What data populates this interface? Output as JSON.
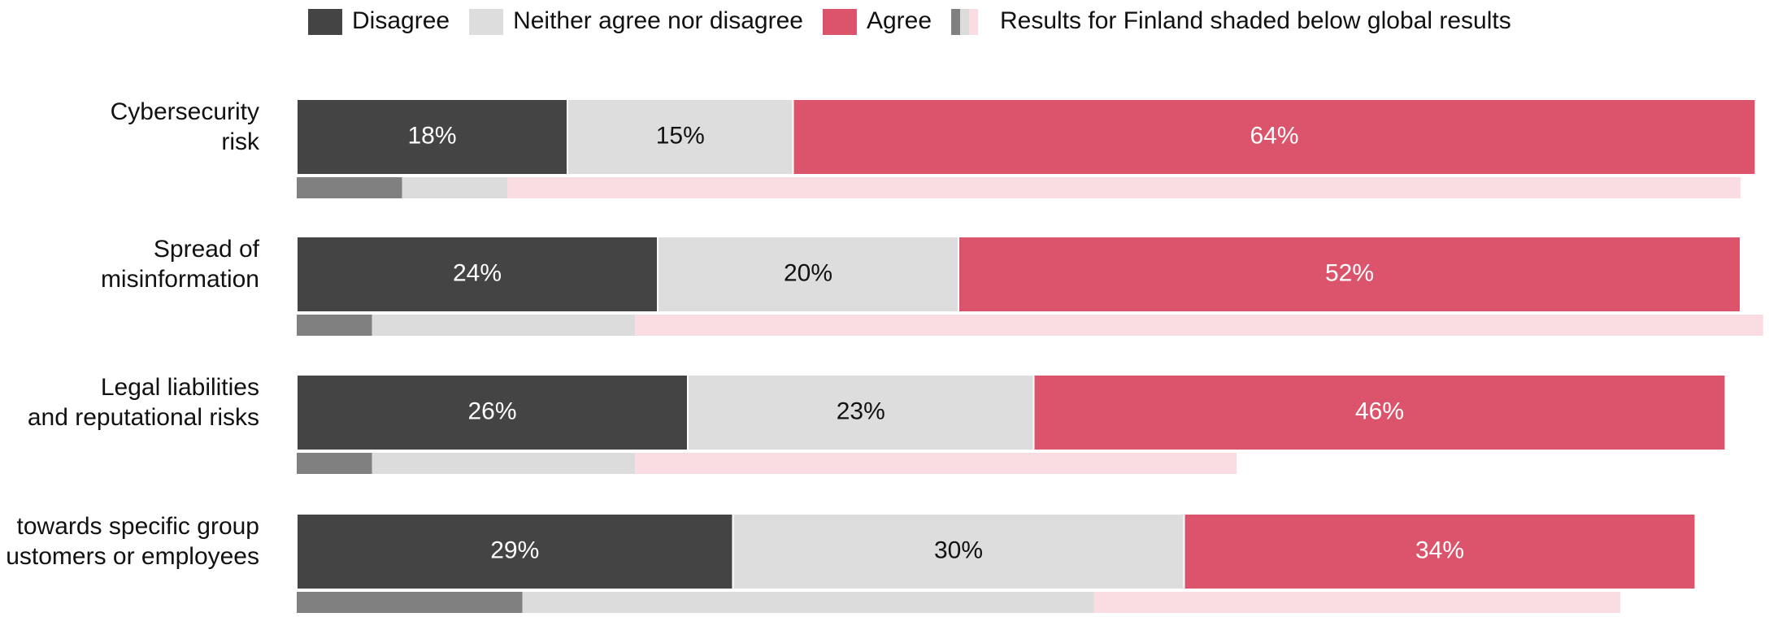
{
  "chart_data": {
    "type": "stacked-barh",
    "categories": [
      [
        "Cybersecurity",
        "risk"
      ],
      [
        "Spread of",
        "misinformation"
      ],
      [
        "Legal liabilities",
        "and reputational risks"
      ],
      [
        "towards specific group",
        "ustomers or employees"
      ]
    ],
    "series": [
      {
        "name": "Disagree",
        "color": "#444444",
        "label_color": "#ffffff",
        "values": [
          18,
          24,
          26,
          29
        ],
        "value_labels": [
          "18%",
          "24%",
          "26%",
          "29%"
        ]
      },
      {
        "name": "Neither agree nor disagree",
        "color": "#dddddd",
        "label_color": "#111111",
        "values": [
          15,
          20,
          23,
          30
        ],
        "value_labels": [
          "15%",
          "20%",
          "23%",
          "30%"
        ]
      },
      {
        "name": "Agree",
        "color": "#dc546c",
        "label_color": "#ffffff",
        "values": [
          64,
          52,
          46,
          34
        ],
        "value_labels": [
          "64%",
          "52%",
          "46%",
          "34%"
        ]
      }
    ],
    "finland": {
      "name": "Results for Finland shaded below global results",
      "series": [
        {
          "color": "#808080",
          "values": [
            7,
            5,
            5,
            15
          ]
        },
        {
          "color": "#dcdcdc",
          "values": [
            7,
            17.5,
            17.5,
            38
          ]
        },
        {
          "color": "#f9dde2",
          "values": [
            82,
            75,
            40,
            35
          ]
        }
      ]
    },
    "xlim": [
      0,
      100
    ]
  }
}
